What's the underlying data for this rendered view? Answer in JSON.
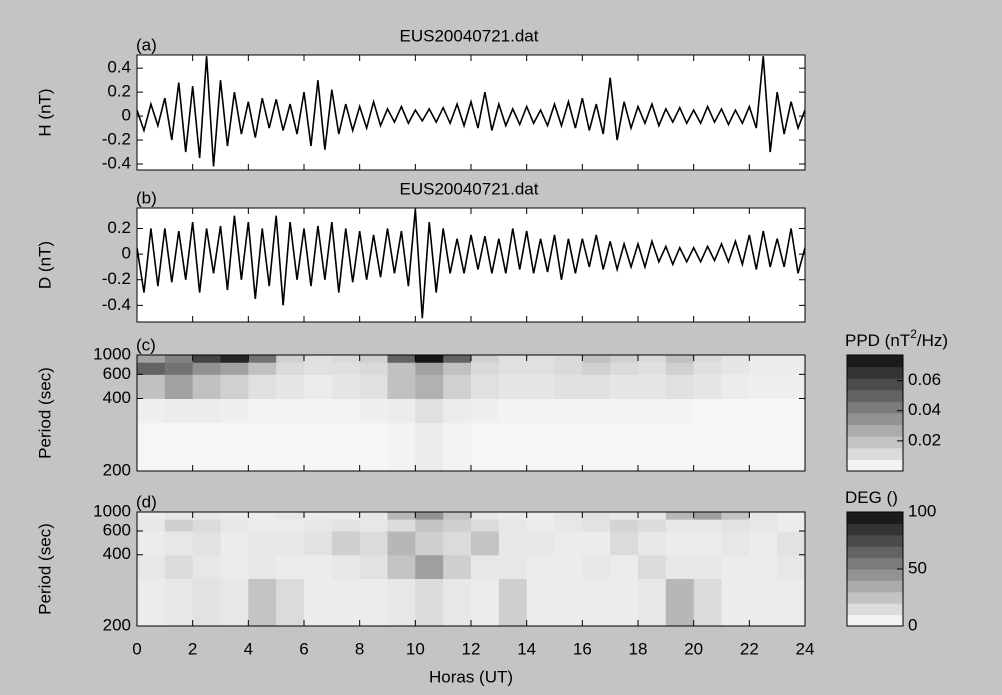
{
  "chart_data": [
    {
      "type": "line",
      "title": "EUS20040721.dat",
      "panel_label": "(a)",
      "ylabel": "H (nT)",
      "xlim": [
        0,
        24
      ],
      "ylim": [
        -0.45,
        0.51
      ],
      "yticks": [
        -0.4,
        -0.2,
        0,
        0.2,
        0.4
      ],
      "color": "#000000",
      "x": [
        0,
        0.25,
        0.5,
        0.75,
        1,
        1.25,
        1.5,
        1.75,
        2,
        2.25,
        2.5,
        2.75,
        3,
        3.25,
        3.5,
        3.75,
        4,
        4.25,
        4.5,
        4.75,
        5,
        5.25,
        5.5,
        5.75,
        6,
        6.25,
        6.5,
        6.75,
        7,
        7.25,
        7.5,
        7.75,
        8,
        8.25,
        8.5,
        8.75,
        9,
        9.25,
        9.5,
        9.75,
        10,
        10.25,
        10.5,
        10.75,
        11,
        11.25,
        11.5,
        11.75,
        12,
        12.25,
        12.5,
        12.75,
        13,
        13.25,
        13.5,
        13.75,
        14,
        14.25,
        14.5,
        14.75,
        15,
        15.25,
        15.5,
        15.75,
        16,
        16.25,
        16.5,
        16.75,
        17,
        17.25,
        17.5,
        17.75,
        18,
        18.25,
        18.5,
        18.75,
        19,
        19.25,
        19.5,
        19.75,
        20,
        20.25,
        20.5,
        20.75,
        21,
        21.25,
        21.5,
        21.75,
        22,
        22.25,
        22.5,
        22.75,
        23,
        23.25,
        23.5,
        23.75,
        24
      ],
      "values": [
        0.05,
        -0.12,
        0.1,
        -0.08,
        0.15,
        -0.2,
        0.28,
        -0.3,
        0.25,
        -0.35,
        0.5,
        -0.42,
        0.3,
        -0.25,
        0.2,
        -0.15,
        0.12,
        -0.18,
        0.15,
        -0.1,
        0.14,
        -0.12,
        0.1,
        -0.15,
        0.2,
        -0.25,
        0.3,
        -0.28,
        0.22,
        -0.15,
        0.1,
        -0.12,
        0.08,
        -0.1,
        0.12,
        -0.08,
        0.06,
        -0.05,
        0.08,
        -0.06,
        0.05,
        -0.04,
        0.06,
        -0.05,
        0.07,
        -0.06,
        0.1,
        -0.08,
        0.12,
        -0.1,
        0.2,
        -0.12,
        0.1,
        -0.08,
        0.06,
        -0.07,
        0.08,
        -0.06,
        0.05,
        -0.08,
        0.1,
        -0.08,
        0.12,
        -0.1,
        0.15,
        -0.12,
        0.1,
        -0.15,
        0.32,
        -0.2,
        0.12,
        -0.1,
        0.08,
        -0.06,
        0.1,
        -0.08,
        0.06,
        -0.05,
        0.07,
        -0.06,
        0.05,
        -0.06,
        0.08,
        -0.05,
        0.06,
        -0.07,
        0.05,
        -0.06,
        0.08,
        -0.1,
        0.5,
        -0.3,
        0.2,
        -0.15,
        0.12,
        -0.1,
        0.05
      ]
    },
    {
      "type": "line",
      "title": "EUS20040721.dat",
      "panel_label": "(b)",
      "ylabel": "D (nT)",
      "xlim": [
        0,
        24
      ],
      "ylim": [
        -0.53,
        0.36
      ],
      "yticks": [
        -0.4,
        -0.2,
        0,
        0.2
      ],
      "color": "#000000",
      "x": [
        0,
        0.25,
        0.5,
        0.75,
        1,
        1.25,
        1.5,
        1.75,
        2,
        2.25,
        2.5,
        2.75,
        3,
        3.25,
        3.5,
        3.75,
        4,
        4.25,
        4.5,
        4.75,
        5,
        5.25,
        5.5,
        5.75,
        6,
        6.25,
        6.5,
        6.75,
        7,
        7.25,
        7.5,
        7.75,
        8,
        8.25,
        8.5,
        8.75,
        9,
        9.25,
        9.5,
        9.75,
        10,
        10.25,
        10.5,
        10.75,
        11,
        11.25,
        11.5,
        11.75,
        12,
        12.25,
        12.5,
        12.75,
        13,
        13.25,
        13.5,
        13.75,
        14,
        14.25,
        14.5,
        14.75,
        15,
        15.25,
        15.5,
        15.75,
        16,
        16.25,
        16.5,
        16.75,
        17,
        17.25,
        17.5,
        17.75,
        18,
        18.25,
        18.5,
        18.75,
        19,
        19.25,
        19.5,
        19.75,
        20,
        20.25,
        20.5,
        20.75,
        21,
        21.25,
        21.5,
        21.75,
        22,
        22.25,
        22.5,
        22.75,
        23,
        23.25,
        23.5,
        23.75,
        24
      ],
      "values": [
        0.05,
        -0.3,
        0.2,
        -0.25,
        0.2,
        -0.22,
        0.18,
        -0.2,
        0.25,
        -0.3,
        0.2,
        -0.15,
        0.22,
        -0.28,
        0.3,
        -0.2,
        0.25,
        -0.35,
        0.2,
        -0.25,
        0.3,
        -0.4,
        0.25,
        -0.2,
        0.2,
        -0.25,
        0.22,
        -0.2,
        0.25,
        -0.3,
        0.2,
        -0.22,
        0.18,
        -0.2,
        0.15,
        -0.18,
        0.2,
        -0.15,
        0.18,
        -0.25,
        0.35,
        -0.5,
        0.25,
        -0.3,
        0.2,
        -0.15,
        0.12,
        -0.15,
        0.15,
        -0.12,
        0.14,
        -0.15,
        0.12,
        -0.15,
        0.2,
        -0.12,
        0.18,
        -0.15,
        0.12,
        -0.14,
        0.15,
        -0.2,
        0.12,
        -0.15,
        0.12,
        -0.1,
        0.15,
        -0.12,
        0.1,
        -0.12,
        0.08,
        -0.1,
        0.08,
        -0.1,
        0.1,
        -0.06,
        0.06,
        -0.08,
        0.05,
        -0.06,
        0.05,
        -0.06,
        0.06,
        -0.05,
        0.08,
        -0.06,
        0.1,
        -0.08,
        0.15,
        -0.12,
        0.18,
        -0.1,
        0.12,
        -0.1,
        0.2,
        -0.15,
        0.05
      ]
    },
    {
      "type": "heatmap",
      "panel_label": "(c)",
      "ylabel": "Period (sec)",
      "xlim": [
        0,
        24
      ],
      "ylim": [
        200,
        1000
      ],
      "yscale": "reciprocal",
      "yticks": [
        200,
        400,
        600,
        1000
      ],
      "x_edges": [
        0,
        1,
        2,
        3,
        4,
        5,
        6,
        7,
        8,
        9,
        10,
        11,
        12,
        13,
        14,
        15,
        16,
        17,
        18,
        19,
        20,
        21,
        22,
        23,
        24
      ],
      "y_edges": [
        200,
        300,
        400,
        600,
        800,
        1000
      ],
      "z": [
        [
          0.003,
          0.003,
          0.003,
          0.003,
          0.003,
          0.003,
          0.003,
          0.003,
          0.003,
          0.004,
          0.006,
          0.004,
          0.003,
          0.003,
          0.003,
          0.003,
          0.003,
          0.003,
          0.003,
          0.003,
          0.003,
          0.003,
          0.003,
          0.003
        ],
        [
          0.005,
          0.006,
          0.006,
          0.005,
          0.004,
          0.004,
          0.004,
          0.004,
          0.005,
          0.006,
          0.01,
          0.006,
          0.005,
          0.004,
          0.004,
          0.004,
          0.004,
          0.004,
          0.004,
          0.004,
          0.003,
          0.003,
          0.003,
          0.003
        ],
        [
          0.02,
          0.03,
          0.02,
          0.015,
          0.01,
          0.008,
          0.006,
          0.008,
          0.01,
          0.02,
          0.025,
          0.015,
          0.01,
          0.008,
          0.008,
          0.01,
          0.01,
          0.008,
          0.008,
          0.01,
          0.008,
          0.006,
          0.005,
          0.005
        ],
        [
          0.05,
          0.045,
          0.035,
          0.03,
          0.02,
          0.012,
          0.01,
          0.01,
          0.012,
          0.02,
          0.03,
          0.02,
          0.012,
          0.01,
          0.01,
          0.012,
          0.015,
          0.012,
          0.01,
          0.015,
          0.01,
          0.008,
          0.006,
          0.006
        ],
        [
          0.03,
          0.04,
          0.06,
          0.07,
          0.045,
          0.015,
          0.01,
          0.012,
          0.015,
          0.05,
          0.075,
          0.05,
          0.015,
          0.01,
          0.01,
          0.012,
          0.02,
          0.015,
          0.012,
          0.02,
          0.012,
          0.008,
          0.006,
          0.006
        ]
      ],
      "colorbar": {
        "title": "PPD (nT",
        "title_sup": "2",
        "title_end": "/Hz)",
        "zlim": [
          0,
          0.077
        ],
        "ticks": [
          0.02,
          0.04,
          0.06
        ]
      }
    },
    {
      "type": "heatmap",
      "panel_label": "(d)",
      "ylabel": "Period (sec)",
      "xlabel": "Horas (UT)",
      "xlim": [
        0,
        24
      ],
      "xticks": [
        0,
        2,
        4,
        6,
        8,
        10,
        12,
        14,
        16,
        18,
        20,
        22,
        24
      ],
      "ylim": [
        200,
        1000
      ],
      "yscale": "reciprocal",
      "yticks": [
        200,
        400,
        600,
        1000
      ],
      "x_edges": [
        0,
        1,
        2,
        3,
        4,
        5,
        6,
        7,
        8,
        9,
        10,
        11,
        12,
        13,
        14,
        15,
        16,
        17,
        18,
        19,
        20,
        21,
        22,
        23,
        24
      ],
      "y_edges": [
        200,
        300,
        400,
        600,
        800,
        1000
      ],
      "z": [
        [
          8,
          10,
          12,
          10,
          25,
          15,
          8,
          8,
          8,
          10,
          15,
          10,
          8,
          20,
          8,
          8,
          8,
          8,
          10,
          30,
          15,
          8,
          8,
          8
        ],
        [
          10,
          15,
          10,
          8,
          10,
          8,
          8,
          10,
          12,
          25,
          40,
          20,
          10,
          10,
          8,
          8,
          10,
          8,
          15,
          10,
          10,
          8,
          8,
          10
        ],
        [
          8,
          10,
          12,
          8,
          10,
          10,
          12,
          20,
          15,
          30,
          20,
          15,
          25,
          10,
          10,
          8,
          8,
          15,
          10,
          8,
          8,
          10,
          8,
          12
        ],
        [
          10,
          20,
          15,
          10,
          8,
          8,
          10,
          12,
          10,
          15,
          25,
          20,
          15,
          10,
          8,
          10,
          12,
          18,
          15,
          10,
          10,
          12,
          10,
          8
        ],
        [
          8,
          10,
          10,
          8,
          8,
          10,
          8,
          8,
          10,
          30,
          45,
          25,
          10,
          8,
          8,
          10,
          12,
          10,
          10,
          30,
          40,
          25,
          10,
          8
        ]
      ],
      "colorbar": {
        "title": "DEG ()",
        "zlim": [
          0,
          100
        ],
        "ticks": [
          0,
          50,
          100
        ]
      }
    }
  ]
}
